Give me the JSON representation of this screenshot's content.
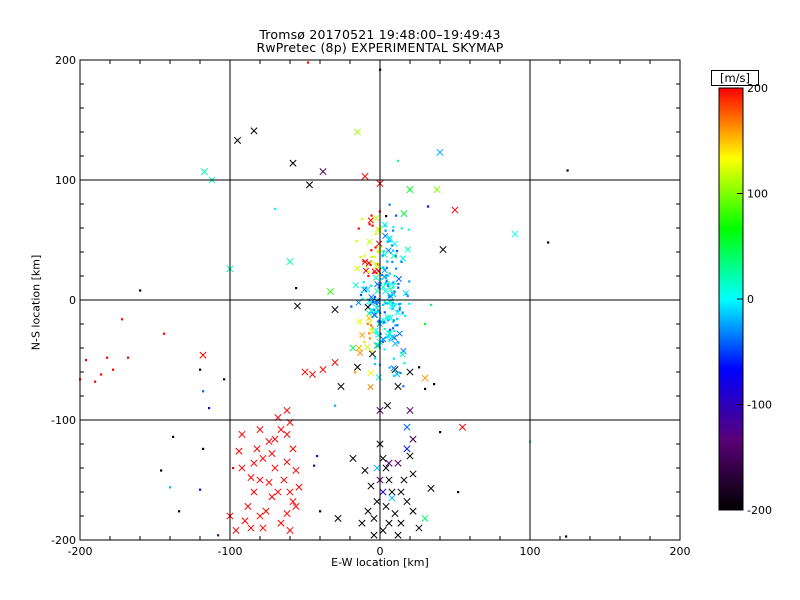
{
  "chart_data": {
    "type": "scatter",
    "title": "Tromsø 20170521 19:48:00–19:49:43",
    "subtitle": "RwPretec (8p) EXPERIMENTAL SKYMAP",
    "xlabel": "E-W location [km]",
    "ylabel": "N-S location [km]",
    "xlim": [
      -200,
      200
    ],
    "ylim": [
      -200,
      200
    ],
    "xticks": [
      "-200",
      "-100",
      "0",
      "100",
      "200"
    ],
    "yticks": [
      "-200",
      "-100",
      "0",
      "100",
      "200"
    ],
    "grid": true,
    "colorbar": {
      "label": "[m/s]",
      "range": [
        -200,
        200
      ],
      "ticks": [
        "-200",
        "-100",
        "0",
        "100",
        "200"
      ],
      "colors": [
        "#000000",
        "#5a0078",
        "#0000ff",
        "#00ffff",
        "#00ff00",
        "#ffff00",
        "#ff0000"
      ]
    },
    "points": [
      {
        "x": -95,
        "y": 133,
        "v": -200,
        "m": "x"
      },
      {
        "x": -84,
        "y": 141,
        "v": -200,
        "m": "x"
      },
      {
        "x": -58,
        "y": 114,
        "v": -200,
        "m": "x"
      },
      {
        "x": -47,
        "y": 96,
        "v": -200,
        "m": "x"
      },
      {
        "x": -38,
        "y": 107,
        "v": -140,
        "m": "x"
      },
      {
        "x": -15,
        "y": 140,
        "v": 110,
        "m": "x"
      },
      {
        "x": 40,
        "y": 123,
        "v": -20,
        "m": "x"
      },
      {
        "x": -117,
        "y": 107,
        "v": 20,
        "m": "x"
      },
      {
        "x": -112,
        "y": 100,
        "v": 20,
        "m": "x"
      },
      {
        "x": -100,
        "y": 26,
        "v": 20,
        "m": "x"
      },
      {
        "x": -60,
        "y": 32,
        "v": 20,
        "m": "x"
      },
      {
        "x": -10,
        "y": 103,
        "v": 200,
        "m": "x"
      },
      {
        "x": 0,
        "y": 97,
        "v": 200,
        "m": "x"
      },
      {
        "x": 20,
        "y": 92,
        "v": 60,
        "m": "x"
      },
      {
        "x": 38,
        "y": 92,
        "v": 100,
        "m": "x"
      },
      {
        "x": 50,
        "y": 75,
        "v": 200,
        "m": "x"
      },
      {
        "x": 90,
        "y": 55,
        "v": 0,
        "m": "x"
      },
      {
        "x": 42,
        "y": 42,
        "v": -200,
        "m": "x"
      },
      {
        "x": 16,
        "y": 72,
        "v": 50,
        "m": "x"
      },
      {
        "x": -55,
        "y": -5,
        "v": -200,
        "m": "x"
      },
      {
        "x": -33,
        "y": 7,
        "v": 80,
        "m": "x"
      },
      {
        "x": -30,
        "y": -8,
        "v": -200,
        "m": "x"
      },
      {
        "x": -18,
        "y": -40,
        "v": 40,
        "m": "x"
      },
      {
        "x": -8,
        "y": -6,
        "v": -200,
        "m": "x"
      },
      {
        "x": -30,
        "y": -52,
        "v": 200,
        "m": "x"
      },
      {
        "x": -38,
        "y": -58,
        "v": 200,
        "m": "x"
      },
      {
        "x": -45,
        "y": -62,
        "v": 200,
        "m": "x"
      },
      {
        "x": -50,
        "y": -60,
        "v": 200,
        "m": "x"
      },
      {
        "x": -26,
        "y": -72,
        "v": -200,
        "m": "x"
      },
      {
        "x": -15,
        "y": -56,
        "v": -200,
        "m": "x"
      },
      {
        "x": -5,
        "y": -45,
        "v": -200,
        "m": "x"
      },
      {
        "x": -2,
        "y": -38,
        "v": 50,
        "m": "x"
      },
      {
        "x": 10,
        "y": -58,
        "v": -200,
        "m": "x"
      },
      {
        "x": 12,
        "y": -72,
        "v": -200,
        "m": "x"
      },
      {
        "x": 20,
        "y": -60,
        "v": -200,
        "m": "x"
      },
      {
        "x": 30,
        "y": -65,
        "v": 160,
        "m": "x"
      },
      {
        "x": 5,
        "y": -88,
        "v": -200,
        "m": "x"
      },
      {
        "x": 0,
        "y": -92,
        "v": -140,
        "m": "x"
      },
      {
        "x": 20,
        "y": -92,
        "v": -140,
        "m": "x"
      },
      {
        "x": 55,
        "y": -106,
        "v": 200,
        "m": "x"
      },
      {
        "x": 18,
        "y": -106,
        "v": -40,
        "m": "x"
      },
      {
        "x": 22,
        "y": -116,
        "v": -160,
        "m": "x"
      },
      {
        "x": -62,
        "y": -92,
        "v": 200,
        "m": "x"
      },
      {
        "x": -60,
        "y": -102,
        "v": 200,
        "m": "x"
      },
      {
        "x": -62,
        "y": -112,
        "v": 200,
        "m": "x"
      },
      {
        "x": -58,
        "y": -124,
        "v": 200,
        "m": "x"
      },
      {
        "x": -62,
        "y": -135,
        "v": 200,
        "m": "x"
      },
      {
        "x": -56,
        "y": -142,
        "v": 200,
        "m": "x"
      },
      {
        "x": -64,
        "y": -150,
        "v": 200,
        "m": "x"
      },
      {
        "x": -60,
        "y": -160,
        "v": 200,
        "m": "x"
      },
      {
        "x": -58,
        "y": -168,
        "v": 200,
        "m": "x"
      },
      {
        "x": -62,
        "y": -178,
        "v": 200,
        "m": "x"
      },
      {
        "x": -66,
        "y": -186,
        "v": 200,
        "m": "x"
      },
      {
        "x": -60,
        "y": -192,
        "v": 200,
        "m": "x"
      },
      {
        "x": -68,
        "y": -98,
        "v": 200,
        "m": "x"
      },
      {
        "x": -70,
        "y": -116,
        "v": 200,
        "m": "x"
      },
      {
        "x": -72,
        "y": -128,
        "v": 200,
        "m": "x"
      },
      {
        "x": -70,
        "y": -140,
        "v": 200,
        "m": "x"
      },
      {
        "x": -74,
        "y": -152,
        "v": 200,
        "m": "x"
      },
      {
        "x": -72,
        "y": -164,
        "v": 200,
        "m": "x"
      },
      {
        "x": -76,
        "y": -176,
        "v": 200,
        "m": "x"
      },
      {
        "x": -78,
        "y": -190,
        "v": 200,
        "m": "x"
      },
      {
        "x": -80,
        "y": -108,
        "v": 200,
        "m": "x"
      },
      {
        "x": -82,
        "y": -124,
        "v": 200,
        "m": "x"
      },
      {
        "x": -84,
        "y": -136,
        "v": 200,
        "m": "x"
      },
      {
        "x": -86,
        "y": -148,
        "v": 200,
        "m": "x"
      },
      {
        "x": -84,
        "y": -160,
        "v": 200,
        "m": "x"
      },
      {
        "x": -88,
        "y": -172,
        "v": 200,
        "m": "x"
      },
      {
        "x": -90,
        "y": -184,
        "v": 200,
        "m": "x"
      },
      {
        "x": -92,
        "y": -112,
        "v": 200,
        "m": "x"
      },
      {
        "x": -94,
        "y": -126,
        "v": 200,
        "m": "x"
      },
      {
        "x": -92,
        "y": -140,
        "v": 200,
        "m": "x"
      },
      {
        "x": -96,
        "y": -192,
        "v": 200,
        "m": "x"
      },
      {
        "x": -100,
        "y": -180,
        "v": 200,
        "m": "x"
      },
      {
        "x": -78,
        "y": -132,
        "v": 200,
        "m": "x"
      },
      {
        "x": -74,
        "y": -118,
        "v": 200,
        "m": "x"
      },
      {
        "x": -66,
        "y": -108,
        "v": 200,
        "m": "x"
      },
      {
        "x": -54,
        "y": -156,
        "v": 200,
        "m": "x"
      },
      {
        "x": -56,
        "y": -172,
        "v": 200,
        "m": "x"
      },
      {
        "x": -68,
        "y": -160,
        "v": 200,
        "m": "x"
      },
      {
        "x": -80,
        "y": -150,
        "v": 200,
        "m": "x"
      },
      {
        "x": -118,
        "y": -46,
        "v": 200,
        "m": "x"
      },
      {
        "x": -80,
        "y": -180,
        "v": 200,
        "m": "x"
      },
      {
        "x": -86,
        "y": -190,
        "v": 200,
        "m": "x"
      },
      {
        "x": -18,
        "y": -132,
        "v": -200,
        "m": "x"
      },
      {
        "x": -10,
        "y": -142,
        "v": -200,
        "m": "x"
      },
      {
        "x": -6,
        "y": -155,
        "v": -200,
        "m": "x"
      },
      {
        "x": -2,
        "y": -168,
        "v": -200,
        "m": "x"
      },
      {
        "x": 2,
        "y": -132,
        "v": -200,
        "m": "x"
      },
      {
        "x": 4,
        "y": -140,
        "v": -200,
        "m": "x"
      },
      {
        "x": 6,
        "y": -150,
        "v": -200,
        "m": "x"
      },
      {
        "x": 8,
        "y": -160,
        "v": -200,
        "m": "x"
      },
      {
        "x": 4,
        "y": -172,
        "v": -200,
        "m": "x"
      },
      {
        "x": 10,
        "y": -178,
        "v": -200,
        "m": "x"
      },
      {
        "x": 14,
        "y": -186,
        "v": -200,
        "m": "x"
      },
      {
        "x": 2,
        "y": -192,
        "v": -200,
        "m": "x"
      },
      {
        "x": -4,
        "y": -196,
        "v": -200,
        "m": "x"
      },
      {
        "x": 12,
        "y": -196,
        "v": -200,
        "m": "x"
      },
      {
        "x": 16,
        "y": -150,
        "v": -200,
        "m": "x"
      },
      {
        "x": 18,
        "y": -168,
        "v": -200,
        "m": "x"
      },
      {
        "x": 22,
        "y": -176,
        "v": -200,
        "m": "x"
      },
      {
        "x": 26,
        "y": -190,
        "v": -200,
        "m": "x"
      },
      {
        "x": 34,
        "y": -157,
        "v": -200,
        "m": "x"
      },
      {
        "x": -28,
        "y": -182,
        "v": -200,
        "m": "x"
      },
      {
        "x": -12,
        "y": -186,
        "v": -200,
        "m": "x"
      },
      {
        "x": -8,
        "y": -176,
        "v": -200,
        "m": "x"
      },
      {
        "x": 0,
        "y": -150,
        "v": -140,
        "m": "x"
      },
      {
        "x": 6,
        "y": -136,
        "v": -140,
        "m": "x"
      },
      {
        "x": -2,
        "y": -140,
        "v": -20,
        "m": "x"
      },
      {
        "x": 2,
        "y": -160,
        "v": -100,
        "m": "x"
      },
      {
        "x": 8,
        "y": -165,
        "v": -20,
        "m": "x"
      },
      {
        "x": 12,
        "y": -136,
        "v": -140,
        "m": "x"
      },
      {
        "x": 20,
        "y": -130,
        "v": -200,
        "m": "x"
      },
      {
        "x": 30,
        "y": -182,
        "v": 40,
        "m": "x"
      },
      {
        "x": 22,
        "y": -145,
        "v": -200,
        "m": "x"
      },
      {
        "x": 14,
        "y": -160,
        "v": -200,
        "m": "x"
      },
      {
        "x": -4,
        "y": -182,
        "v": -200,
        "m": "x"
      },
      {
        "x": 6,
        "y": -186,
        "v": -200,
        "m": "x"
      },
      {
        "x": 18,
        "y": -124,
        "v": -60,
        "m": "x"
      },
      {
        "x": 0,
        "y": -120,
        "v": -200,
        "m": "x"
      },
      {
        "x": 0,
        "y": 192,
        "v": -200,
        "m": "d"
      },
      {
        "x": -48,
        "y": 198,
        "v": 200,
        "m": "d"
      },
      {
        "x": 125,
        "y": 108,
        "v": -200,
        "m": "d"
      },
      {
        "x": 112,
        "y": 48,
        "v": -200,
        "m": "d"
      },
      {
        "x": -160,
        "y": 8,
        "v": -200,
        "m": "d"
      },
      {
        "x": -70,
        "y": 76,
        "v": 0,
        "m": "d"
      },
      {
        "x": 12,
        "y": 116,
        "v": 20,
        "m": "d"
      },
      {
        "x": -5,
        "y": 62,
        "v": 200,
        "m": "d"
      },
      {
        "x": 4,
        "y": 70,
        "v": -200,
        "m": "d"
      },
      {
        "x": 32,
        "y": 78,
        "v": -80,
        "m": "d"
      },
      {
        "x": -172,
        "y": -16,
        "v": 200,
        "m": "d"
      },
      {
        "x": -144,
        "y": -28,
        "v": 200,
        "m": "d"
      },
      {
        "x": -182,
        "y": -48,
        "v": 200,
        "m": "d"
      },
      {
        "x": -196,
        "y": -50,
        "v": 200,
        "m": "d"
      },
      {
        "x": -186,
        "y": -62,
        "v": 200,
        "m": "d"
      },
      {
        "x": -178,
        "y": -58,
        "v": 200,
        "m": "d"
      },
      {
        "x": -168,
        "y": -48,
        "v": 200,
        "m": "d"
      },
      {
        "x": -190,
        "y": -68,
        "v": 200,
        "m": "d"
      },
      {
        "x": -200,
        "y": -66,
        "v": 200,
        "m": "d"
      },
      {
        "x": -120,
        "y": -58,
        "v": -200,
        "m": "d"
      },
      {
        "x": -104,
        "y": -66,
        "v": -200,
        "m": "d"
      },
      {
        "x": -118,
        "y": -76,
        "v": -40,
        "m": "d"
      },
      {
        "x": -114,
        "y": -90,
        "v": -100,
        "m": "d"
      },
      {
        "x": -138,
        "y": -114,
        "v": -200,
        "m": "d"
      },
      {
        "x": -118,
        "y": -124,
        "v": -200,
        "m": "d"
      },
      {
        "x": -146,
        "y": -142,
        "v": -200,
        "m": "d"
      },
      {
        "x": -140,
        "y": -156,
        "v": -20,
        "m": "d"
      },
      {
        "x": -134,
        "y": -176,
        "v": -200,
        "m": "d"
      },
      {
        "x": -120,
        "y": -158,
        "v": -80,
        "m": "d"
      },
      {
        "x": -98,
        "y": -140,
        "v": 200,
        "m": "d"
      },
      {
        "x": -42,
        "y": -130,
        "v": -100,
        "m": "d"
      },
      {
        "x": -44,
        "y": -138,
        "v": -100,
        "m": "d"
      },
      {
        "x": 40,
        "y": -110,
        "v": -200,
        "m": "d"
      },
      {
        "x": 52,
        "y": -160,
        "v": -200,
        "m": "d"
      },
      {
        "x": 100,
        "y": -118,
        "v": 40,
        "m": "d"
      },
      {
        "x": 124,
        "y": -197,
        "v": -200,
        "m": "d"
      },
      {
        "x": -30,
        "y": -88,
        "v": -20,
        "m": "d"
      },
      {
        "x": -108,
        "y": -196,
        "v": -140,
        "m": "d"
      },
      {
        "x": -40,
        "y": -176,
        "v": -200,
        "m": "d"
      },
      {
        "x": 26,
        "y": -56,
        "v": -200,
        "m": "d"
      },
      {
        "x": 36,
        "y": -70,
        "v": -200,
        "m": "d"
      },
      {
        "x": 30,
        "y": -74,
        "v": -200,
        "m": "d"
      },
      {
        "x": -56,
        "y": 10,
        "v": -200,
        "m": "d"
      },
      {
        "x": 34,
        "y": -4,
        "v": 40,
        "m": "d"
      },
      {
        "x": 30,
        "y": -20,
        "v": 60,
        "m": "d"
      }
    ],
    "core_cluster": {
      "x_center": 2,
      "y_center": 0,
      "x_spread": 12,
      "y_spread": 45,
      "count": 260
    }
  }
}
